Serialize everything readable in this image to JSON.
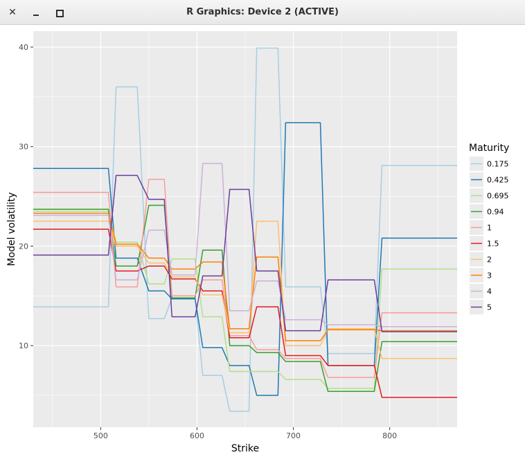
{
  "window": {
    "title": "R Graphics: Device 2 (ACTIVE)",
    "close_glyph": "✕",
    "buttons": [
      "close-icon",
      "minimize-icon",
      "maximize-icon"
    ]
  },
  "chart_data": {
    "type": "line",
    "title": "",
    "xlabel": "Strike",
    "ylabel": "Model volatility",
    "xlim": [
      430,
      870
    ],
    "ylim": [
      1.8,
      41.6
    ],
    "xticks": [
      500,
      600,
      700,
      800
    ],
    "yticks": [
      10,
      20,
      30,
      40
    ],
    "grid": true,
    "legend_title": "Maturity",
    "legend_position": "right",
    "panel_background": "#ebebeb",
    "grid_color": "#ffffff",
    "x": [
      430,
      508,
      516,
      538,
      550,
      566,
      574,
      598,
      606,
      626,
      634,
      654,
      662,
      684,
      692,
      728,
      736,
      784,
      792,
      870
    ],
    "series": [
      {
        "name": "0.175",
        "color": "#a6cee3",
        "values": [
          13.9,
          13.9,
          36.0,
          36.0,
          12.7,
          12.7,
          14.8,
          14.8,
          7.0,
          7.0,
          3.4,
          3.4,
          39.9,
          39.9,
          15.9,
          15.9,
          9.2,
          9.2,
          28.1,
          28.1
        ]
      },
      {
        "name": "0.425",
        "color": "#1f78b4",
        "values": [
          27.8,
          27.8,
          18.8,
          18.8,
          15.5,
          15.5,
          14.7,
          14.7,
          9.8,
          9.8,
          8.0,
          8.0,
          5.0,
          5.0,
          32.4,
          32.4,
          8.0,
          8.0,
          20.8,
          20.8
        ]
      },
      {
        "name": "0.695",
        "color": "#b2df8a",
        "values": [
          23.5,
          23.5,
          20.4,
          20.4,
          16.2,
          16.2,
          18.7,
          18.7,
          12.9,
          12.9,
          7.4,
          7.4,
          7.4,
          7.4,
          6.6,
          6.6,
          5.7,
          5.7,
          17.7,
          17.7
        ]
      },
      {
        "name": "0.94",
        "color": "#33a02c",
        "values": [
          23.7,
          23.7,
          18.0,
          18.0,
          24.1,
          24.1,
          14.8,
          14.8,
          19.6,
          19.6,
          10.0,
          10.0,
          9.3,
          9.3,
          8.4,
          8.4,
          5.4,
          5.4,
          10.4,
          10.4
        ]
      },
      {
        "name": "1",
        "color": "#fb9a99",
        "values": [
          25.4,
          25.4,
          15.9,
          15.9,
          26.7,
          26.7,
          15.0,
          15.0,
          16.6,
          16.6,
          11.0,
          11.0,
          9.6,
          9.6,
          8.7,
          8.7,
          6.8,
          6.8,
          13.3,
          13.3
        ]
      },
      {
        "name": "1.5",
        "color": "#e31a1c",
        "values": [
          21.7,
          21.7,
          17.5,
          17.5,
          18.0,
          18.0,
          16.7,
          16.7,
          15.5,
          15.5,
          10.8,
          10.8,
          13.9,
          13.9,
          9.0,
          9.0,
          8.0,
          8.0,
          4.8,
          4.8
        ]
      },
      {
        "name": "2",
        "color": "#fdbf6f",
        "values": [
          22.5,
          22.5,
          20.0,
          20.0,
          18.3,
          18.3,
          16.9,
          16.9,
          15.1,
          15.1,
          11.3,
          11.3,
          22.5,
          22.5,
          10.0,
          10.0,
          11.7,
          11.7,
          8.7,
          8.7
        ]
      },
      {
        "name": "3",
        "color": "#ff7f00",
        "values": [
          23.3,
          23.3,
          20.2,
          20.2,
          18.8,
          18.8,
          17.7,
          17.7,
          18.4,
          18.4,
          11.7,
          11.7,
          18.9,
          18.9,
          10.5,
          10.5,
          11.6,
          11.6,
          11.5,
          11.5
        ]
      },
      {
        "name": "4",
        "color": "#cab2d6",
        "values": [
          23.1,
          23.1,
          16.6,
          16.6,
          21.6,
          21.6,
          17.1,
          17.1,
          28.3,
          28.3,
          13.5,
          13.5,
          16.5,
          16.5,
          12.6,
          12.6,
          12.1,
          12.1,
          11.9,
          11.9
        ]
      },
      {
        "name": "5",
        "color": "#6a3d9a",
        "values": [
          19.1,
          19.1,
          27.1,
          27.1,
          24.7,
          24.7,
          12.9,
          12.9,
          17.0,
          17.0,
          25.7,
          25.7,
          17.5,
          17.5,
          11.5,
          11.5,
          16.6,
          16.6,
          11.4,
          11.4
        ]
      }
    ]
  }
}
